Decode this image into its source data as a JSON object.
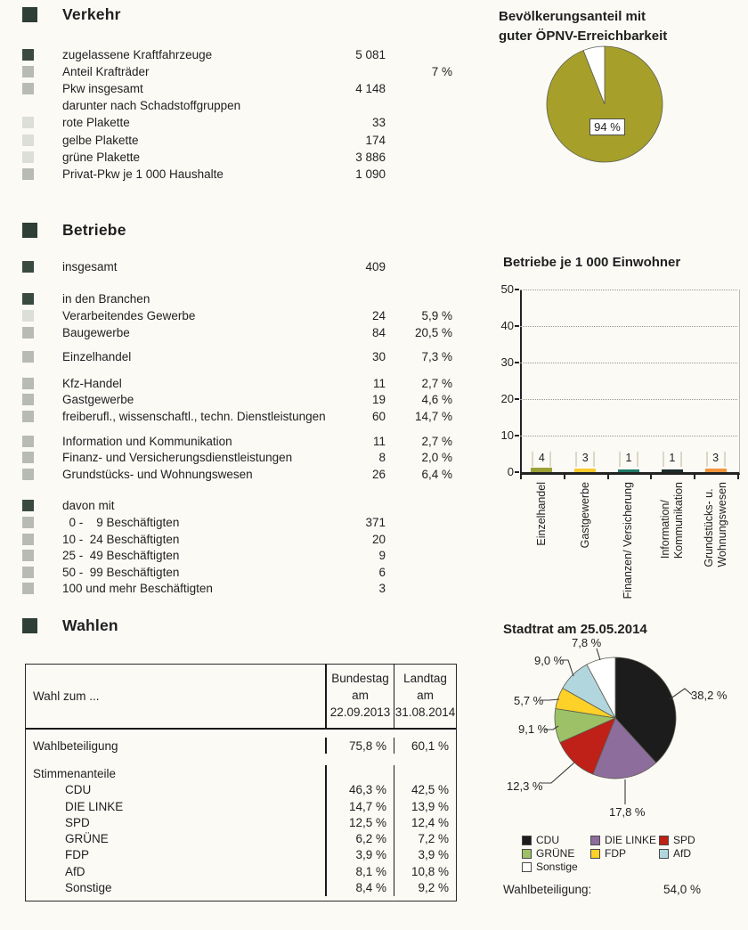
{
  "verkehr": {
    "title": "Verkehr",
    "rows": [
      {
        "bullet": "dark",
        "label": "zugelassene Kraftfahrzeuge",
        "value": "5 081",
        "pct": ""
      },
      {
        "bullet": "medium",
        "label": "Anteil Krafträder",
        "value": "",
        "pct": "7 %"
      },
      {
        "bullet": "medium",
        "label": "Pkw insgesamt",
        "value": "4 148",
        "pct": ""
      },
      {
        "bullet": "none",
        "label": "darunter nach Schadstoffgruppen",
        "value": "",
        "pct": ""
      },
      {
        "bullet": "light",
        "label": "rote Plakette",
        "value": "33",
        "pct": ""
      },
      {
        "bullet": "light",
        "label": "gelbe Plakette",
        "value": "174",
        "pct": ""
      },
      {
        "bullet": "light",
        "label": "grüne Plakette",
        "value": "3 886",
        "pct": ""
      },
      {
        "bullet": "medium",
        "label": "Privat-Pkw je 1 000 Haushalte",
        "value": "1 090",
        "pct": ""
      }
    ]
  },
  "betriebe": {
    "title": "Betriebe",
    "groups": [
      {
        "rows": [
          {
            "bullet": "dark",
            "label": "insgesamt",
            "value": "409",
            "pct": ""
          }
        ]
      },
      {
        "rows": [
          {
            "bullet": "dark",
            "label": "in den Branchen",
            "value": "",
            "pct": ""
          },
          {
            "bullet": "light",
            "label": "Verarbeitendes Gewerbe",
            "value": "24",
            "pct": "5,9 %"
          },
          {
            "bullet": "medium",
            "label": "Baugewerbe",
            "value": "84",
            "pct": "20,5 %"
          }
        ]
      },
      {
        "rows": [
          {
            "bullet": "medium",
            "label": "Einzelhandel",
            "value": "30",
            "pct": "7,3 %"
          }
        ]
      },
      {
        "rows": [
          {
            "bullet": "medium",
            "label": "Kfz-Handel",
            "value": "11",
            "pct": "2,7 %"
          },
          {
            "bullet": "medium",
            "label": "Gastgewerbe",
            "value": "19",
            "pct": "4,6 %"
          },
          {
            "bullet": "medium",
            "label": "freiberufl., wissenschaftl., techn. Dienstleistungen",
            "value": "60",
            "pct": "14,7 %"
          }
        ]
      },
      {
        "rows": [
          {
            "bullet": "medium",
            "label": "Information und Kommunikation",
            "value": "11",
            "pct": "2,7 %"
          },
          {
            "bullet": "medium",
            "label": "Finanz- und Versicherungsdienstleistungen",
            "value": "8",
            "pct": "2,0 %"
          },
          {
            "bullet": "medium",
            "label": "Grundstücks- und Wohnungswesen",
            "value": "26",
            "pct": "6,4 %"
          }
        ]
      },
      {
        "rows": [
          {
            "bullet": "dark",
            "label": "davon mit",
            "value": "",
            "pct": ""
          },
          {
            "bullet": "medium",
            "label": "  0 -    9 Beschäftigten",
            "value": "371",
            "pct": ""
          },
          {
            "bullet": "medium",
            "label": "10 -  24 Beschäftigten",
            "value": "20",
            "pct": ""
          },
          {
            "bullet": "medium",
            "label": "25 -  49 Beschäftigten",
            "value": "9",
            "pct": ""
          },
          {
            "bullet": "medium",
            "label": "50 -  99 Beschäftigten",
            "value": "6",
            "pct": ""
          },
          {
            "bullet": "medium",
            "label": "100 und mehr Beschäftigten",
            "value": "3",
            "pct": ""
          }
        ]
      }
    ]
  },
  "wahlen": {
    "title": "Wahlen",
    "table": {
      "corner": "Wahl zum ...",
      "col1_header": "Bundestag\nam\n22.09.2013",
      "col2_header": "Landtag\nam\n31.08.2014",
      "rows": [
        {
          "label": "Wahlbeteiligung",
          "indent": false,
          "values": [
            "75,8 %",
            "60,1 %"
          ]
        },
        {
          "label": "Stimmenanteile",
          "indent": false,
          "values": [
            "",
            ""
          ]
        },
        {
          "label": "CDU",
          "indent": true,
          "values": [
            "46,3 %",
            "42,5 %"
          ]
        },
        {
          "label": "DIE LINKE",
          "indent": true,
          "values": [
            "14,7 %",
            "13,9 %"
          ]
        },
        {
          "label": "SPD",
          "indent": true,
          "values": [
            "12,5 %",
            "12,4 %"
          ]
        },
        {
          "label": "GRÜNE",
          "indent": true,
          "values": [
            "6,2 %",
            "7,2 %"
          ]
        },
        {
          "label": "FDP",
          "indent": true,
          "values": [
            "3,9 %",
            "3,9 %"
          ]
        },
        {
          "label": "AfD",
          "indent": true,
          "values": [
            "8,1 %",
            "10,8 %"
          ]
        },
        {
          "label": "Sonstige",
          "indent": true,
          "values": [
            "8,4 %",
            "9,2 %"
          ]
        }
      ]
    }
  },
  "chart_data": [
    {
      "type": "pie",
      "title": "Bevölkerungsanteil mit\nguter ÖPNV-Erreichbarkeit",
      "center_label": "94 %",
      "slices": [
        {
          "label": "94 %",
          "value": 94,
          "color": "#a6a02b"
        },
        {
          "label": "",
          "value": 6,
          "color": "#ffffff"
        }
      ]
    },
    {
      "type": "bar",
      "title": "Betriebe je 1 000 Einwohner",
      "categories": [
        "Einzelhandel",
        "Gastgewerbe",
        "Finanzen/ Versicherung",
        "Information/\nKommunikation",
        "Grundstücks- u.\nWohnungswesen"
      ],
      "values": [
        4,
        3,
        1,
        1,
        3
      ],
      "colors": [
        "#9ba135",
        "#fbcb2e",
        "#1e7a67",
        "#1c2b2a",
        "#f2953b"
      ],
      "ylim": [
        0,
        50
      ],
      "yticks": [
        0,
        10,
        20,
        30,
        40,
        50
      ],
      "grid": "dotted horizontal"
    },
    {
      "type": "pie",
      "title": "Stadtrat am 25.05.2014",
      "slices": [
        {
          "label": "38,2 %",
          "name": "CDU",
          "value": 38.2,
          "color": "#1c1c1c"
        },
        {
          "label": "17,8 %",
          "name": "DIE LINKE",
          "value": 17.8,
          "color": "#8d6d9c"
        },
        {
          "label": "12,3 %",
          "name": "SPD",
          "value": 12.3,
          "color": "#bf2017"
        },
        {
          "label": "9,1 %",
          "name": "GRÜNE",
          "value": 9.1,
          "color": "#9cc167"
        },
        {
          "label": "5,7 %",
          "name": "FDP",
          "value": 5.7,
          "color": "#fdd128"
        },
        {
          "label": "9,0 %",
          "name": "AfD",
          "value": 9.0,
          "color": "#b2d6de"
        },
        {
          "label": "7,8 %",
          "name": "Sonstige",
          "value": 7.8,
          "color": "#ffffff"
        }
      ],
      "legend": [
        {
          "label": "CDU",
          "color": "#1c1c1c"
        },
        {
          "label": "DIE LINKE",
          "color": "#8d6d9c"
        },
        {
          "label": "SPD",
          "color": "#bf2017"
        },
        {
          "label": "GRÜNE",
          "color": "#9cc167"
        },
        {
          "label": "FDP",
          "color": "#fdd128"
        },
        {
          "label": "AfD",
          "color": "#b2d6de"
        },
        {
          "label": "Sonstige",
          "color": "#ffffff"
        }
      ],
      "legend_position": "bottom",
      "footer_label": "Wahlbeteiligung:",
      "footer_value": "54,0 %"
    }
  ]
}
